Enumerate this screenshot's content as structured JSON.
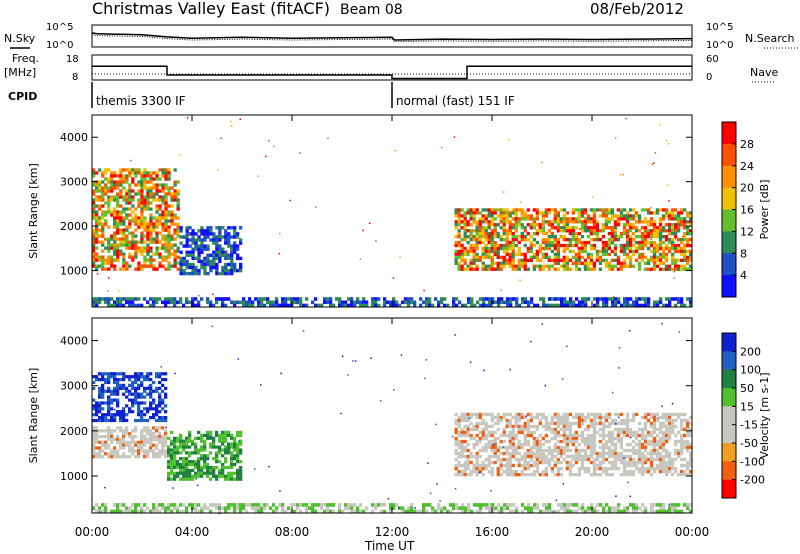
{
  "header": {
    "title": "Christmas Valley East (fitACF)",
    "beam": "Beam 08",
    "date": "08/Feb/2012"
  },
  "left_labels": {
    "nsky": "N.Sky",
    "freq": "Freq.",
    "freq_unit": "[MHz]",
    "cpid": "CPID"
  },
  "right_labels": {
    "nsearch": "N.Search",
    "nave": "Nave"
  },
  "scales": {
    "nsky_top": "10^5",
    "nsky_bottom": "10^0",
    "freq_top": "18",
    "freq_bottom": "8",
    "nsearch_top": "10^5",
    "nsearch_bottom": "10^0",
    "nave_top": "60",
    "nave_bottom": "0"
  },
  "cpid_modes": [
    {
      "label": "themis 3300 IF",
      "start_hour": 0,
      "end_hour": 12
    },
    {
      "label": "normal (fast) 151 IF",
      "start_hour": 12,
      "end_hour": 24
    }
  ],
  "chart_data": [
    {
      "type": "line",
      "panel": "noise-frequency",
      "x_range_hours": [
        0,
        24
      ],
      "series": [
        {
          "name": "N.Sky",
          "x": [
            0,
            0.2,
            1,
            2,
            3,
            4,
            6,
            8,
            10,
            12,
            12.1,
            14,
            16,
            18,
            20,
            22,
            24
          ],
          "y_log10": [
            3.2,
            3.0,
            2.9,
            2.8,
            2.3,
            2.0,
            2.2,
            2.0,
            2.1,
            2.2,
            1.6,
            1.8,
            1.7,
            1.8,
            1.7,
            1.8,
            1.9
          ]
        },
        {
          "name": "Freq.",
          "x": [
            0,
            3,
            3,
            12,
            12,
            15,
            15,
            24
          ],
          "y": [
            13.5,
            13.5,
            10,
            10,
            8.6,
            8.6,
            13.5,
            13.5
          ]
        }
      ]
    },
    {
      "type": "heatmap",
      "panel": "power",
      "title": "Power [dB]",
      "ylabel": "Slant Range [km]",
      "xlabel": "Time UT",
      "ylim": [
        180,
        4500
      ],
      "x_ticks": [
        "00:00",
        "04:00",
        "08:00",
        "12:00",
        "16:00",
        "20:00",
        "00:00"
      ],
      "y_ticks": [
        1000,
        2000,
        3000,
        4000
      ],
      "colorbar_label": "Power [dB]",
      "colorbar_ticks": [
        "28",
        "24",
        "20",
        "16",
        "12",
        "8",
        "4"
      ],
      "colorbar_colors": [
        "#ff0000",
        "#ff5000",
        "#ff9000",
        "#f2c000",
        "#62c030",
        "#2e8b57",
        "#1e50c8",
        "#1010ff"
      ],
      "echo_regions": [
        {
          "t0": 0,
          "t1": 3.5,
          "r0": 1000,
          "r1": 3300,
          "level_db": 20
        },
        {
          "t0": 3.5,
          "t1": 6,
          "r0": 900,
          "r1": 2000,
          "level_db": 8
        },
        {
          "t0": 14.5,
          "t1": 24,
          "r0": 1000,
          "r1": 2400,
          "level_db": 20
        },
        {
          "t0": 0,
          "t1": 24,
          "r0": 180,
          "r1": 400,
          "level_db": 6
        }
      ]
    },
    {
      "type": "heatmap",
      "panel": "velocity",
      "title": "Velocity [m s-1]",
      "ylabel": "Slant Range [km]",
      "xlabel": "Time UT",
      "ylim": [
        180,
        4500
      ],
      "x_ticks": [
        "00:00",
        "04:00",
        "08:00",
        "12:00",
        "16:00",
        "20:00",
        "00:00"
      ],
      "y_ticks": [
        1000,
        2000,
        3000,
        4000
      ],
      "colorbar_label": "Velocity [m s-1]",
      "colorbar_ticks": [
        "200",
        "100",
        "50",
        "15",
        "-15",
        "-50",
        "-100",
        "-200"
      ],
      "colorbar_colors": [
        "#1020d0",
        "#2060c0",
        "#208040",
        "#50c030",
        "#c8c8c0",
        "#c8c8c0",
        "#f0a020",
        "#f06010",
        "#ff0000"
      ],
      "echo_regions": [
        {
          "t0": 0,
          "t1": 3,
          "r0": 2200,
          "r1": 3300,
          "velocity": 150
        },
        {
          "t0": 0,
          "t1": 3,
          "r0": 1400,
          "r1": 2100,
          "velocity": 0
        },
        {
          "t0": 3,
          "t1": 6,
          "r0": 900,
          "r1": 2000,
          "velocity": 60
        },
        {
          "t0": 14.5,
          "t1": 24,
          "r0": 1000,
          "r1": 2400,
          "velocity": 0
        },
        {
          "t0": 0,
          "t1": 24,
          "r0": 180,
          "r1": 400,
          "velocity": 20
        }
      ]
    }
  ]
}
